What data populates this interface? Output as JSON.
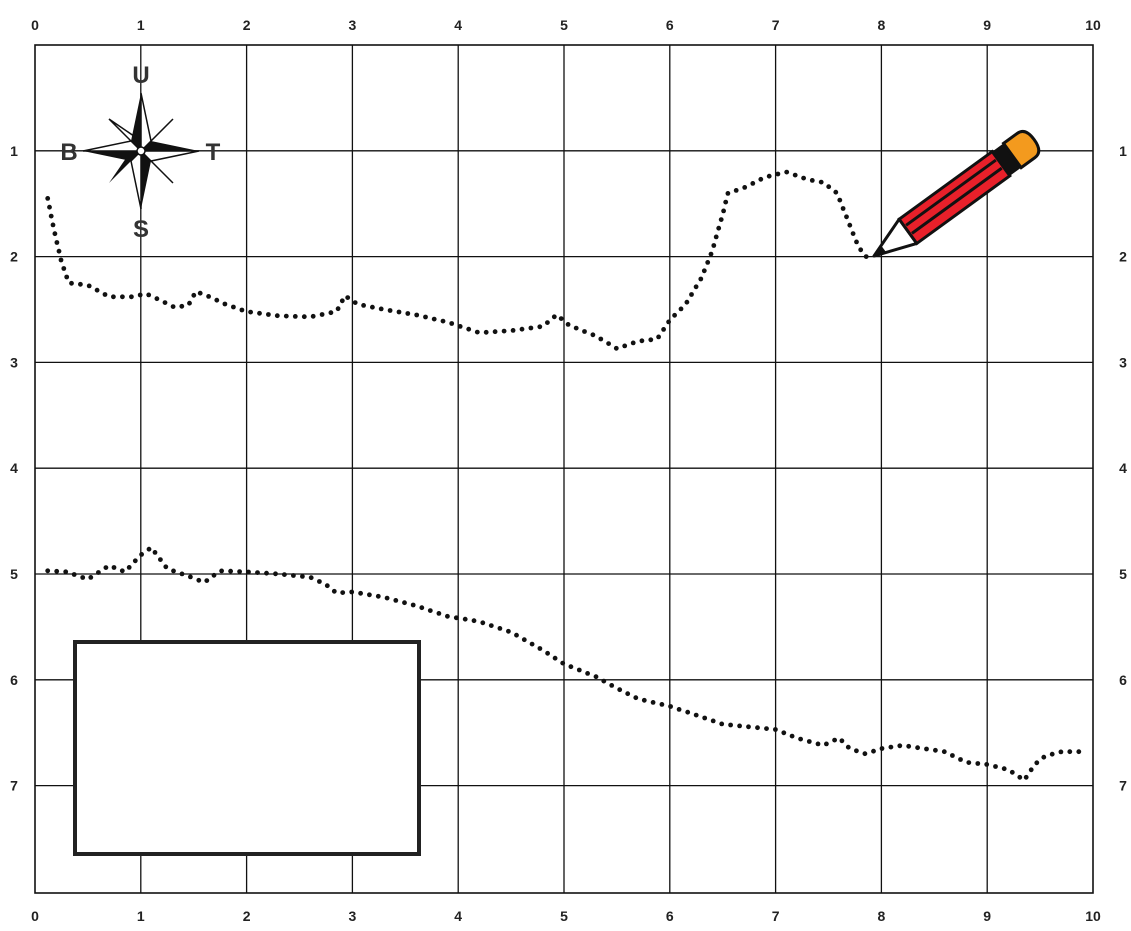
{
  "map": {
    "x_ticks": [
      "0",
      "1",
      "2",
      "3",
      "4",
      "5",
      "6",
      "7",
      "8",
      "9",
      "10"
    ],
    "y_ticks": [
      "1",
      "2",
      "3",
      "4",
      "5",
      "6",
      "7"
    ]
  },
  "compass": {
    "north": "U",
    "south": "S",
    "east": "T",
    "west": "B"
  },
  "routes": [
    {
      "points": [
        [
          0.12,
          1.45
        ],
        [
          0.18,
          1.75
        ],
        [
          0.25,
          2.05
        ],
        [
          0.32,
          2.25
        ],
        [
          0.5,
          2.27
        ],
        [
          0.7,
          2.38
        ],
        [
          0.92,
          2.38
        ],
        [
          1.05,
          2.35
        ],
        [
          1.2,
          2.42
        ],
        [
          1.32,
          2.48
        ],
        [
          1.45,
          2.46
        ],
        [
          1.52,
          2.33
        ],
        [
          1.65,
          2.38
        ],
        [
          1.8,
          2.45
        ],
        [
          2.0,
          2.52
        ],
        [
          2.3,
          2.56
        ],
        [
          2.6,
          2.57
        ],
        [
          2.85,
          2.52
        ],
        [
          2.93,
          2.37
        ],
        [
          3.05,
          2.45
        ],
        [
          3.3,
          2.5
        ],
        [
          3.6,
          2.55
        ],
        [
          3.9,
          2.62
        ],
        [
          4.2,
          2.72
        ],
        [
          4.5,
          2.7
        ],
        [
          4.8,
          2.66
        ],
        [
          4.93,
          2.55
        ],
        [
          5.05,
          2.65
        ],
        [
          5.3,
          2.75
        ],
        [
          5.5,
          2.87
        ],
        [
          5.7,
          2.8
        ],
        [
          5.88,
          2.78
        ],
        [
          6.0,
          2.6
        ],
        [
          6.15,
          2.45
        ],
        [
          6.3,
          2.2
        ],
        [
          6.4,
          1.95
        ],
        [
          6.5,
          1.6
        ],
        [
          6.55,
          1.4
        ],
        [
          6.7,
          1.35
        ],
        [
          6.9,
          1.25
        ],
        [
          7.1,
          1.2
        ],
        [
          7.3,
          1.27
        ],
        [
          7.45,
          1.3
        ],
        [
          7.58,
          1.4
        ],
        [
          7.68,
          1.65
        ],
        [
          7.78,
          1.9
        ],
        [
          7.85,
          2.0
        ],
        [
          7.9,
          2.0
        ]
      ]
    },
    {
      "points": [
        [
          0.12,
          4.97
        ],
        [
          0.3,
          4.98
        ],
        [
          0.5,
          5.05
        ],
        [
          0.7,
          4.92
        ],
        [
          0.85,
          4.98
        ],
        [
          1.0,
          4.82
        ],
        [
          1.1,
          4.75
        ],
        [
          1.25,
          4.95
        ],
        [
          1.45,
          5.02
        ],
        [
          1.6,
          5.08
        ],
        [
          1.75,
          4.97
        ],
        [
          2.0,
          4.98
        ],
        [
          2.3,
          5.0
        ],
        [
          2.6,
          5.03
        ],
        [
          2.75,
          5.1
        ],
        [
          2.85,
          5.18
        ],
        [
          3.0,
          5.17
        ],
        [
          3.3,
          5.22
        ],
        [
          3.6,
          5.3
        ],
        [
          3.9,
          5.4
        ],
        [
          4.2,
          5.45
        ],
        [
          4.5,
          5.55
        ],
        [
          4.8,
          5.72
        ],
        [
          5.0,
          5.85
        ],
        [
          5.3,
          5.97
        ],
        [
          5.5,
          6.08
        ],
        [
          5.7,
          6.18
        ],
        [
          6.0,
          6.25
        ],
        [
          6.3,
          6.35
        ],
        [
          6.5,
          6.42
        ],
        [
          6.8,
          6.45
        ],
        [
          7.0,
          6.47
        ],
        [
          7.2,
          6.55
        ],
        [
          7.45,
          6.62
        ],
        [
          7.6,
          6.55
        ],
        [
          7.7,
          6.65
        ],
        [
          7.85,
          6.7
        ],
        [
          8.0,
          6.65
        ],
        [
          8.2,
          6.62
        ],
        [
          8.4,
          6.65
        ],
        [
          8.6,
          6.68
        ],
        [
          8.8,
          6.78
        ],
        [
          9.0,
          6.8
        ],
        [
          9.2,
          6.85
        ],
        [
          9.35,
          6.95
        ],
        [
          9.45,
          6.8
        ],
        [
          9.55,
          6.72
        ],
        [
          9.7,
          6.68
        ],
        [
          9.9,
          6.68
        ]
      ]
    }
  ]
}
